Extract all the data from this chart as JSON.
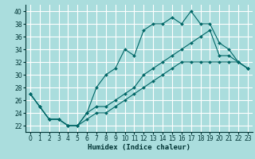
{
  "title": "",
  "xlabel": "Humidex (Indice chaleur)",
  "ylabel": "",
  "bg_color": "#aadddd",
  "plot_bg_color": "#aadddd",
  "grid_color": "#ffffff",
  "line_color": "#006666",
  "marker_color": "#006666",
  "xlim": [
    -0.5,
    23.5
  ],
  "ylim": [
    21.0,
    41.0
  ],
  "yticks": [
    22,
    24,
    26,
    28,
    30,
    32,
    34,
    36,
    38,
    40
  ],
  "xticks": [
    0,
    1,
    2,
    3,
    4,
    5,
    6,
    7,
    8,
    9,
    10,
    11,
    12,
    13,
    14,
    15,
    16,
    17,
    18,
    19,
    20,
    21,
    22,
    23
  ],
  "series": [
    [
      27,
      25,
      23,
      23,
      22,
      22,
      24,
      28,
      30,
      31,
      34,
      33,
      37,
      38,
      38,
      39,
      38,
      40,
      38,
      38,
      35,
      34,
      32,
      31
    ],
    [
      27,
      25,
      23,
      23,
      22,
      22,
      24,
      25,
      25,
      26,
      27,
      28,
      30,
      31,
      32,
      33,
      34,
      35,
      36,
      37,
      33,
      33,
      32,
      31
    ],
    [
      27,
      25,
      23,
      23,
      22,
      22,
      23,
      24,
      24,
      25,
      26,
      27,
      28,
      29,
      30,
      31,
      32,
      32,
      32,
      32,
      32,
      32,
      32,
      31
    ]
  ]
}
